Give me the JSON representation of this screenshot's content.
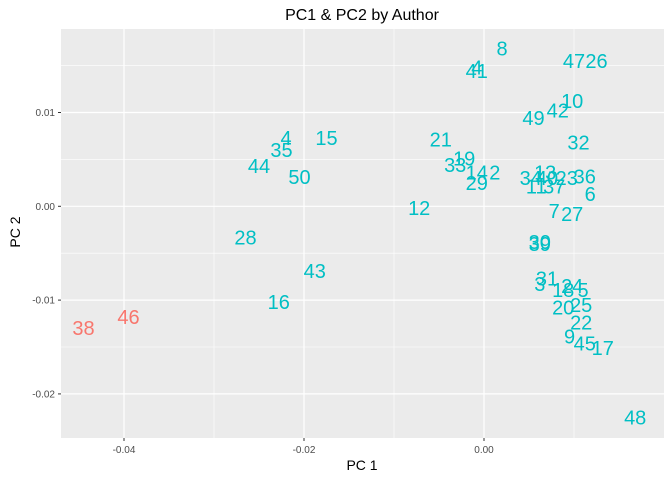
{
  "chart_data": {
    "type": "scatter",
    "title": "PC1 & PC2 by Author",
    "xlabel": "PC 1",
    "ylabel": "PC 2",
    "xlim": [
      -0.047,
      0.02
    ],
    "ylim": [
      -0.0247,
      0.0189
    ],
    "xticks": [
      -0.04,
      -0.02,
      0.0
    ],
    "xtick_labels": [
      "-0.04",
      "-0.02",
      "0.00"
    ],
    "yticks": [
      -0.02,
      -0.01,
      0.0,
      0.01
    ],
    "ytick_labels": [
      "-0.02",
      "-0.01",
      "0.00",
      "0.01"
    ],
    "grid": true,
    "legend": "none",
    "colors": {
      "panel": "#ebebeb",
      "grid": "#ffffff",
      "groupA": "#f8766d",
      "groupB": "#00bfc4"
    },
    "points": [
      {
        "label": "38",
        "x": -0.0445,
        "y": -0.013,
        "group": "A"
      },
      {
        "label": "46",
        "x": -0.0395,
        "y": -0.0118,
        "group": "A"
      },
      {
        "label": "8",
        "x": 0.002,
        "y": 0.0168,
        "group": "B"
      },
      {
        "label": "4",
        "x": -0.0008,
        "y": 0.0148,
        "group": "B"
      },
      {
        "label": "41",
        "x": -0.0008,
        "y": 0.0144,
        "group": "B"
      },
      {
        "label": "47",
        "x": 0.01,
        "y": 0.0155,
        "group": "B"
      },
      {
        "label": "26",
        "x": 0.0125,
        "y": 0.0155,
        "group": "B"
      },
      {
        "label": "10",
        "x": 0.0098,
        "y": 0.0112,
        "group": "B"
      },
      {
        "label": "42",
        "x": 0.0082,
        "y": 0.0102,
        "group": "B"
      },
      {
        "label": "49",
        "x": 0.0055,
        "y": 0.0094,
        "group": "B"
      },
      {
        "label": "4",
        "x": -0.022,
        "y": 0.0073,
        "group": "B"
      },
      {
        "label": "15",
        "x": -0.0175,
        "y": 0.0073,
        "group": "B"
      },
      {
        "label": "35",
        "x": -0.0225,
        "y": 0.006,
        "group": "B"
      },
      {
        "label": "44",
        "x": -0.025,
        "y": 0.0043,
        "group": "B"
      },
      {
        "label": "50",
        "x": -0.0205,
        "y": 0.0031,
        "group": "B"
      },
      {
        "label": "21",
        "x": -0.0048,
        "y": 0.0071,
        "group": "B"
      },
      {
        "label": "32",
        "x": 0.0105,
        "y": 0.0068,
        "group": "B"
      },
      {
        "label": "19",
        "x": -0.0022,
        "y": 0.0051,
        "group": "B"
      },
      {
        "label": "33",
        "x": -0.0032,
        "y": 0.0044,
        "group": "B"
      },
      {
        "label": "14",
        "x": -0.0008,
        "y": 0.0036,
        "group": "B"
      },
      {
        "label": "2",
        "x": 0.0012,
        "y": 0.0036,
        "group": "B"
      },
      {
        "label": "29",
        "x": -0.0008,
        "y": 0.0025,
        "group": "B"
      },
      {
        "label": "13",
        "x": 0.0068,
        "y": 0.0036,
        "group": "B"
      },
      {
        "label": "34",
        "x": 0.0052,
        "y": 0.003,
        "group": "B"
      },
      {
        "label": "40",
        "x": 0.007,
        "y": 0.003,
        "group": "B"
      },
      {
        "label": "23",
        "x": 0.0092,
        "y": 0.003,
        "group": "B"
      },
      {
        "label": "36",
        "x": 0.0112,
        "y": 0.0032,
        "group": "B"
      },
      {
        "label": "11",
        "x": 0.0058,
        "y": 0.0021,
        "group": "B"
      },
      {
        "label": "37",
        "x": 0.0078,
        "y": 0.0021,
        "group": "B"
      },
      {
        "label": "6",
        "x": 0.0118,
        "y": 0.0013,
        "group": "B"
      },
      {
        "label": "12",
        "x": -0.0072,
        "y": -0.0002,
        "group": "B"
      },
      {
        "label": "7",
        "x": 0.0078,
        "y": -0.0005,
        "group": "B"
      },
      {
        "label": "27",
        "x": 0.0098,
        "y": -0.0008,
        "group": "B"
      },
      {
        "label": "28",
        "x": -0.0265,
        "y": -0.0033,
        "group": "B"
      },
      {
        "label": "30",
        "x": 0.0062,
        "y": -0.0038,
        "group": "B"
      },
      {
        "label": "39",
        "x": 0.0062,
        "y": -0.004,
        "group": "B"
      },
      {
        "label": "43",
        "x": -0.0188,
        "y": -0.0069,
        "group": "B"
      },
      {
        "label": "31",
        "x": 0.007,
        "y": -0.0077,
        "group": "B"
      },
      {
        "label": "3",
        "x": 0.0062,
        "y": -0.0083,
        "group": "B"
      },
      {
        "label": "24",
        "x": 0.0098,
        "y": -0.0085,
        "group": "B"
      },
      {
        "label": "18",
        "x": 0.0088,
        "y": -0.0089,
        "group": "B"
      },
      {
        "label": "5",
        "x": 0.011,
        "y": -0.0089,
        "group": "B"
      },
      {
        "label": "16",
        "x": -0.0228,
        "y": -0.0102,
        "group": "B"
      },
      {
        "label": "20",
        "x": 0.0088,
        "y": -0.0108,
        "group": "B"
      },
      {
        "label": "25",
        "x": 0.0108,
        "y": -0.0105,
        "group": "B"
      },
      {
        "label": "22",
        "x": 0.0108,
        "y": -0.0124,
        "group": "B"
      },
      {
        "label": "9",
        "x": 0.0095,
        "y": -0.0139,
        "group": "B"
      },
      {
        "label": "45",
        "x": 0.0112,
        "y": -0.0146,
        "group": "B"
      },
      {
        "label": "17",
        "x": 0.0132,
        "y": -0.0151,
        "group": "B"
      },
      {
        "label": "48",
        "x": 0.0168,
        "y": -0.0225,
        "group": "B"
      }
    ]
  }
}
